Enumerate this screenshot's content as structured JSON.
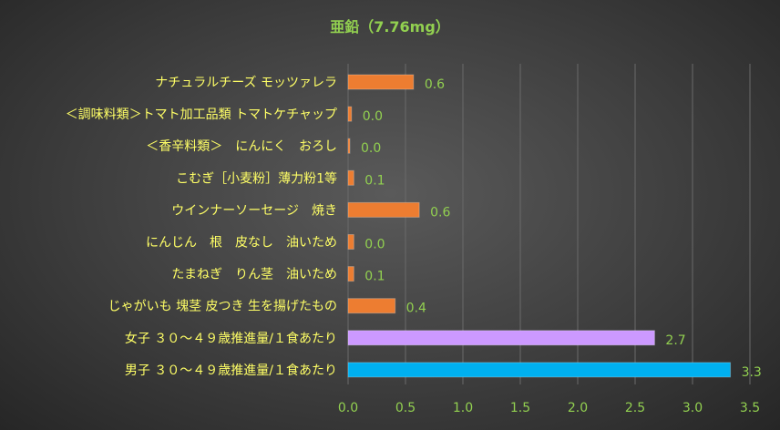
{
  "chart_data": {
    "type": "bar",
    "orientation": "horizontal",
    "title": "亜鉛（7.76mg）",
    "categories": [
      "ナチュラルチーズ モッツァレラ",
      "＜調味料類＞トマト加工品類 トマトケチャップ",
      "＜香辛料類＞　にんにく　おろし",
      "こむぎ［小麦粉］薄力粉1等",
      "ウインナーソーセージ　焼き",
      "にんじん　根　皮なし　油いため",
      "たまねぎ　りん茎　油いため",
      "じゃがいも 塊茎 皮つき 生を揚げたもの",
      "女子 ３０～４９歳推進量/１食あたり",
      "男子 ３０～４９歳推進量/１食あたり"
    ],
    "values": [
      0.57,
      0.03,
      0.01,
      0.05,
      0.62,
      0.05,
      0.05,
      0.41,
      2.67,
      3.33
    ],
    "value_labels": [
      "0.6",
      "0.0",
      "0.0",
      "0.1",
      "0.6",
      "0.0",
      "0.1",
      "0.4",
      "2.7",
      "3.3"
    ],
    "bar_colors": [
      "#ed7d31",
      "#ed7d31",
      "#ed7d31",
      "#ed7d31",
      "#ed7d31",
      "#ed7d31",
      "#ed7d31",
      "#ed7d31",
      "#cc99ff",
      "#00b0f0"
    ],
    "xlim": [
      0,
      3.5
    ],
    "xticks": [
      "0.0",
      "0.5",
      "1.0",
      "1.5",
      "2.0",
      "2.5",
      "3.0",
      "3.5"
    ],
    "grid": true,
    "legend": "none",
    "colors": {
      "title": "#92d050",
      "category_label": "#ffff66",
      "value_label": "#92d050",
      "tick_label": "#92d050"
    }
  }
}
